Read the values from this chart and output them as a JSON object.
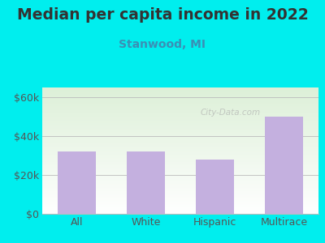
{
  "title": "Median per capita income in 2022",
  "subtitle": "Stanwood, MI",
  "categories": [
    "All",
    "White",
    "Hispanic",
    "Multirace"
  ],
  "values": [
    32000,
    32000,
    28000,
    50000
  ],
  "bar_color": "#C4B0DF",
  "background_outer": "#00EEEE",
  "bg_top_color": "#ddf0d8",
  "bg_bottom_color": "#ffffff",
  "yticks": [
    0,
    20000,
    40000,
    60000
  ],
  "ytick_labels": [
    "$0",
    "$20k",
    "$40k",
    "$60k"
  ],
  "ylim": [
    0,
    65000
  ],
  "title_fontsize": 13.5,
  "subtitle_fontsize": 10,
  "tick_fontsize": 9,
  "watermark": "City-Data.com",
  "title_color": "#333333",
  "subtitle_color": "#3a8fb5",
  "tick_color": "#555555",
  "grid_color": "#bbbbbb"
}
